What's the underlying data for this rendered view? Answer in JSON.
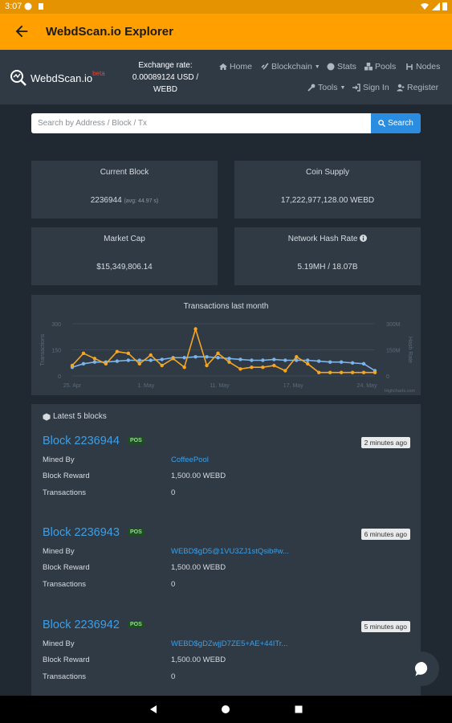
{
  "status_bar": {
    "time": "3:07"
  },
  "app_bar": {
    "title": "WebdScan.io Explorer"
  },
  "header": {
    "brand": "WebdScan.io",
    "beta": "beta",
    "exchange_label": "Exchange rate:",
    "exchange_value": "0.00089124 USD /",
    "exchange_unit": "WEBD",
    "nav": {
      "home": "Home",
      "blockchain": "Blockchain",
      "stats": "Stats",
      "pools": "Pools",
      "nodes": "Nodes",
      "tools": "Tools",
      "signin": "Sign In",
      "register": "Register"
    }
  },
  "search": {
    "placeholder": "Search by Address / Block / Tx",
    "button": "Search"
  },
  "stats": {
    "current_block": {
      "label": "Current Block",
      "value": "2236944",
      "sub": "(avg: 44.97 s)"
    },
    "coin_supply": {
      "label": "Coin Supply",
      "value": "17,222,977,128.00 WEBD"
    },
    "market_cap": {
      "label": "Market Cap",
      "value": "$15,349,806.14"
    },
    "hash_rate": {
      "label": "Network Hash Rate",
      "value": "5.19MH / 18.07B"
    }
  },
  "chart_data": {
    "type": "line",
    "title": "Transactions last month",
    "ylabel": "Transactions",
    "y2label": "Hash Rate",
    "ylim": [
      0,
      300
    ],
    "y2lim": [
      0,
      300
    ],
    "yticks": [
      "0",
      "150",
      "300"
    ],
    "y2ticks": [
      "0",
      "150M",
      "300M"
    ],
    "x_ticks": [
      "25. Apr",
      "1. May",
      "11. May",
      "17. May",
      "24. May"
    ],
    "credit": "Highcharts.com",
    "colors": {
      "transactions": "#f5a623",
      "hashrate": "#7cb5ec"
    },
    "series": [
      {
        "name": "Transactions",
        "values": [
          60,
          130,
          100,
          70,
          140,
          130,
          70,
          120,
          60,
          100,
          50,
          270,
          60,
          130,
          80,
          40,
          50,
          50,
          60,
          30,
          110,
          70,
          20,
          20,
          20,
          20,
          20,
          20
        ]
      },
      {
        "name": "Hash Rate",
        "values": [
          50,
          70,
          80,
          80,
          85,
          90,
          90,
          90,
          95,
          105,
          105,
          110,
          110,
          105,
          100,
          95,
          90,
          90,
          95,
          90,
          90,
          90,
          85,
          80,
          80,
          75,
          70,
          30
        ]
      }
    ]
  },
  "blocks_header": "Latest 5 blocks",
  "block_labels": {
    "mined_by": "Mined By",
    "reward": "Block Reward",
    "tx": "Transactions"
  },
  "blocks": [
    {
      "name": "Block 2236944",
      "badge": "POS",
      "ago": "2 minutes ago",
      "miner": "CoffeePool",
      "reward": "1,500.00 WEBD",
      "tx": "0"
    },
    {
      "name": "Block 2236943",
      "badge": "POS",
      "ago": "6 minutes ago",
      "miner": "WEBD$gD5@1VU3ZJ1stQsib#w...",
      "reward": "1,500.00 WEBD",
      "tx": "0"
    },
    {
      "name": "Block 2236942",
      "badge": "POS",
      "ago": "5 minutes ago",
      "miner": "WEBD$gDZwjjD7ZE5+AE+44ITr...",
      "reward": "1,500.00 WEBD",
      "tx": "0"
    }
  ]
}
